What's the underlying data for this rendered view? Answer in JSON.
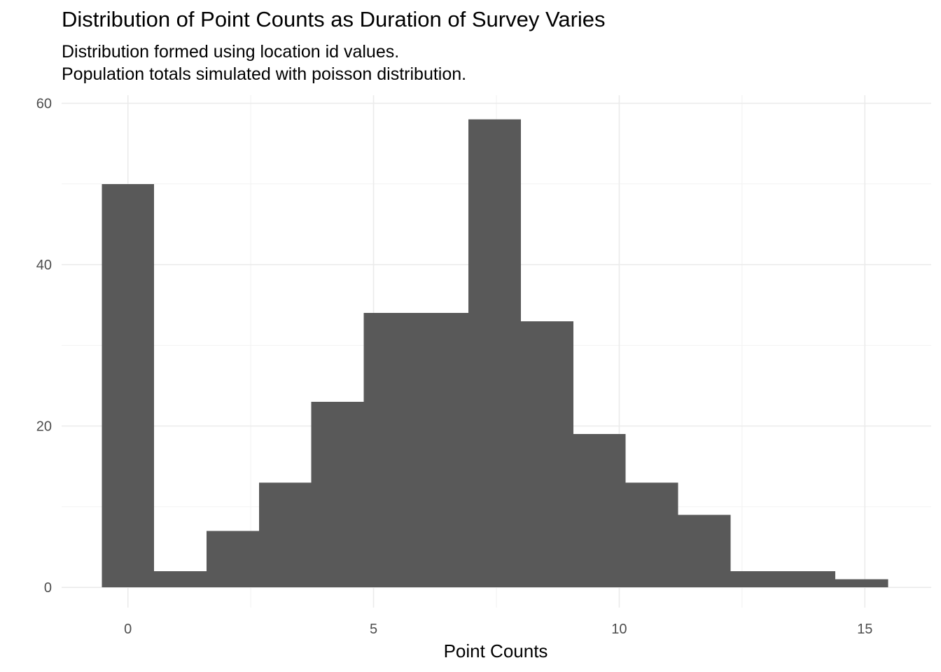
{
  "chart_data": {
    "type": "bar",
    "title": "Distribution of Point Counts as Duration of Survey Varies",
    "subtitle": [
      "Distribution formed using location id values.",
      "Population totals simulated with poisson distribution."
    ],
    "xlabel": "Point Counts",
    "ylabel": "",
    "xlim": [
      -1.35,
      16.35
    ],
    "ylim": [
      -2.5,
      61
    ],
    "x_ticks": [
      0,
      5,
      10,
      15
    ],
    "y_ticks": [
      0,
      20,
      40,
      60
    ],
    "grid": true,
    "bar_color": "#595959",
    "bins": [
      {
        "x0": -0.53,
        "x1": 0.53,
        "count": 50
      },
      {
        "x0": 0.53,
        "x1": 1.6,
        "count": 2
      },
      {
        "x0": 1.6,
        "x1": 2.67,
        "count": 7
      },
      {
        "x0": 2.67,
        "x1": 3.73,
        "count": 13
      },
      {
        "x0": 3.73,
        "x1": 4.8,
        "count": 23
      },
      {
        "x0": 4.8,
        "x1": 5.87,
        "count": 34
      },
      {
        "x0": 5.87,
        "x1": 6.93,
        "count": 34
      },
      {
        "x0": 6.93,
        "x1": 8.0,
        "count": 58
      },
      {
        "x0": 8.0,
        "x1": 9.07,
        "count": 33
      },
      {
        "x0": 9.07,
        "x1": 10.13,
        "count": 19
      },
      {
        "x0": 10.13,
        "x1": 11.2,
        "count": 13
      },
      {
        "x0": 11.2,
        "x1": 12.27,
        "count": 9
      },
      {
        "x0": 12.27,
        "x1": 13.33,
        "count": 2
      },
      {
        "x0": 13.33,
        "x1": 14.4,
        "count": 2
      },
      {
        "x0": 14.4,
        "x1": 15.47,
        "count": 1
      }
    ]
  }
}
